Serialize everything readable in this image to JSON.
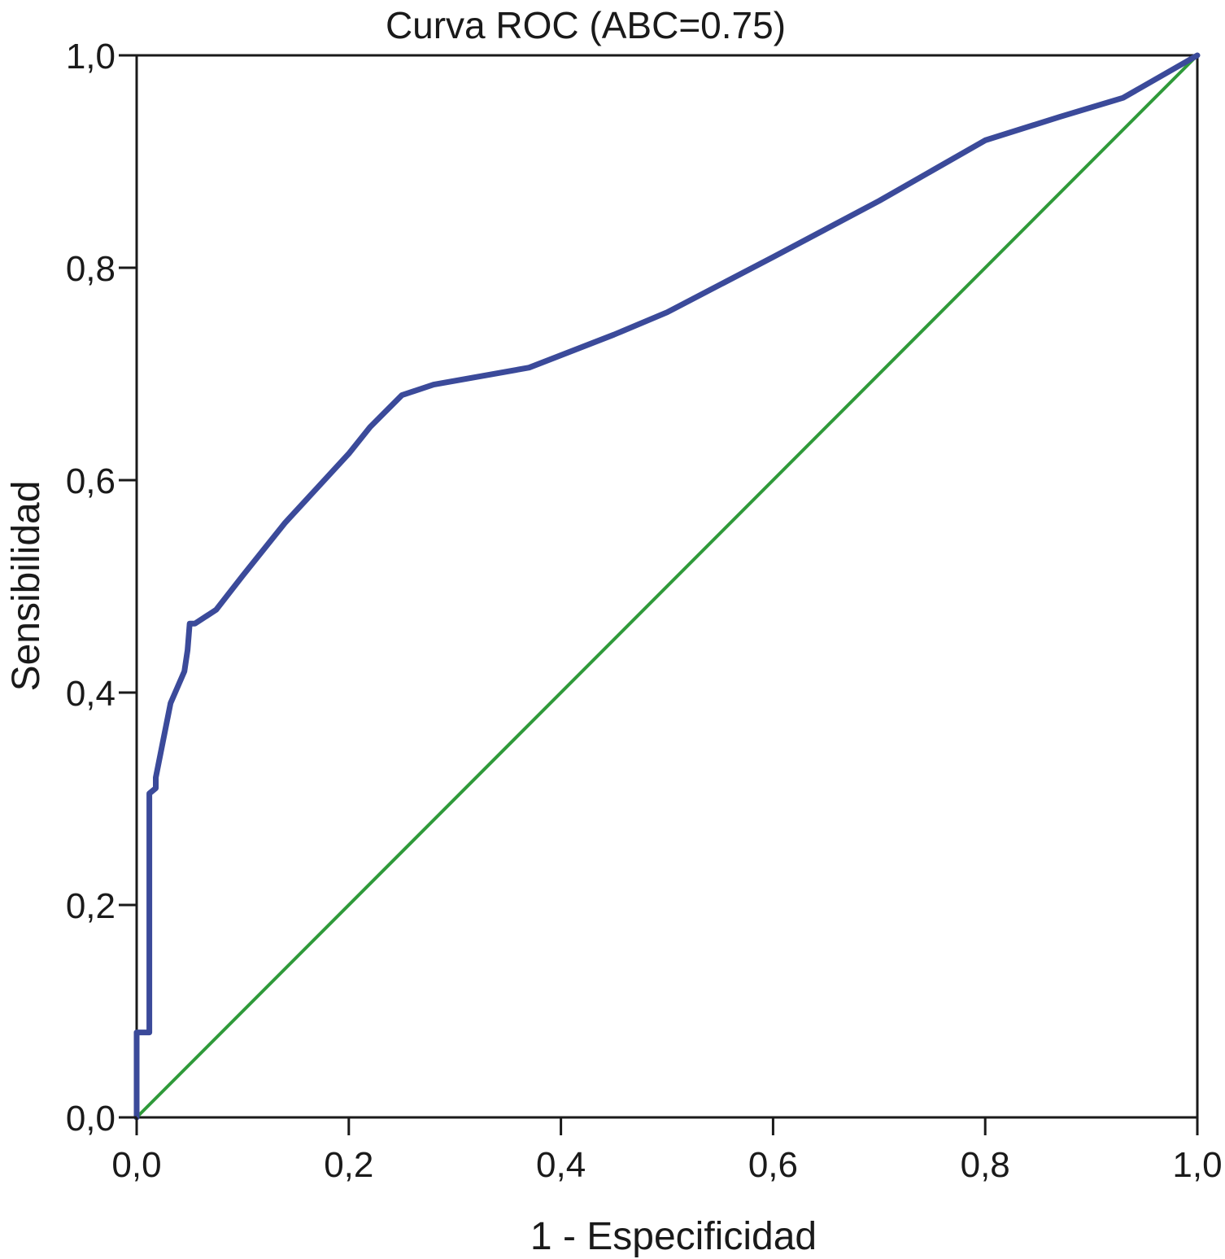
{
  "chart_data": {
    "type": "line",
    "title": "Curva ROC (ABC=0.75)",
    "xlabel": "1 - Especificidad",
    "ylabel": "Sensibilidad",
    "xlim": [
      0,
      1
    ],
    "ylim": [
      0,
      1
    ],
    "x_ticks": [
      "0,0",
      "0,2",
      "0,4",
      "0,6",
      "0,8",
      "1,0"
    ],
    "y_ticks": [
      "0,0",
      "0,2",
      "0,4",
      "0,6",
      "0,8",
      "1,0"
    ],
    "grid": false,
    "series": [
      {
        "color": "#3b4a9a",
        "x": [
          0.0,
          0.0,
          0.012,
          0.012,
          0.018,
          0.018,
          0.025,
          0.032,
          0.045,
          0.048,
          0.05,
          0.055,
          0.075,
          0.1,
          0.14,
          0.2,
          0.22,
          0.25,
          0.28,
          0.37,
          0.45,
          0.5,
          0.6,
          0.7,
          0.8,
          0.87,
          0.93,
          1.0
        ],
        "y": [
          0.0,
          0.08,
          0.08,
          0.305,
          0.31,
          0.32,
          0.355,
          0.39,
          0.42,
          0.44,
          0.465,
          0.465,
          0.478,
          0.51,
          0.56,
          0.625,
          0.65,
          0.68,
          0.69,
          0.706,
          0.737,
          0.758,
          0.81,
          0.863,
          0.92,
          0.942,
          0.96,
          1.0
        ]
      },
      {
        "color": "#2f9a3a",
        "x": [
          0.0,
          1.0
        ],
        "y": [
          0.0,
          1.0
        ]
      }
    ]
  }
}
